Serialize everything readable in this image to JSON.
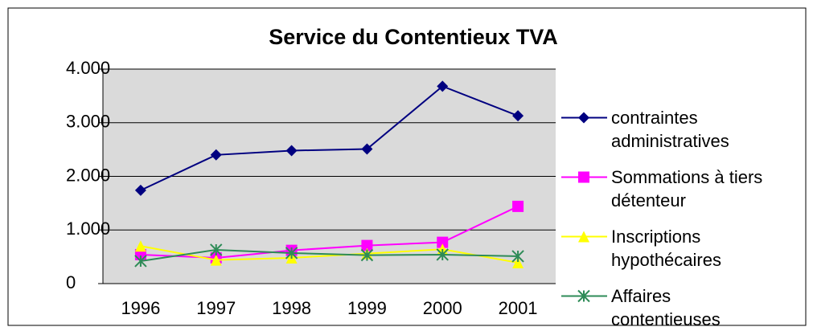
{
  "chart_data": {
    "type": "line",
    "title": "Service du Contentieux TVA",
    "categories": [
      "1996",
      "1997",
      "1998",
      "1999",
      "2000",
      "2001"
    ],
    "series": [
      {
        "name": "contraintes administratives",
        "color": "#000080",
        "marker": "diamond",
        "values": [
          1740,
          2400,
          2480,
          2510,
          3680,
          3130
        ]
      },
      {
        "name": "Sommations à tiers détenteur",
        "color": "#ff00ff",
        "marker": "square",
        "values": [
          540,
          480,
          620,
          710,
          770,
          1440
        ]
      },
      {
        "name": "Inscriptions hypothécaires",
        "color": "#ffff00",
        "marker": "triangle",
        "values": [
          700,
          440,
          480,
          560,
          640,
          390
        ]
      },
      {
        "name": "Affaires contentieuses",
        "color": "#2e8b57",
        "marker": "asterisk",
        "values": [
          420,
          630,
          570,
          530,
          540,
          510
        ]
      }
    ],
    "ylim": [
      0,
      4000
    ],
    "yticks": [
      0,
      {
        "value": 1000,
        "label": "1.000"
      },
      {
        "value": 2000,
        "label": "2.000"
      },
      {
        "value": 3000,
        "label": "3.000"
      },
      {
        "value": 4000,
        "label": "4.000"
      }
    ],
    "grid": true,
    "legend": "right"
  }
}
